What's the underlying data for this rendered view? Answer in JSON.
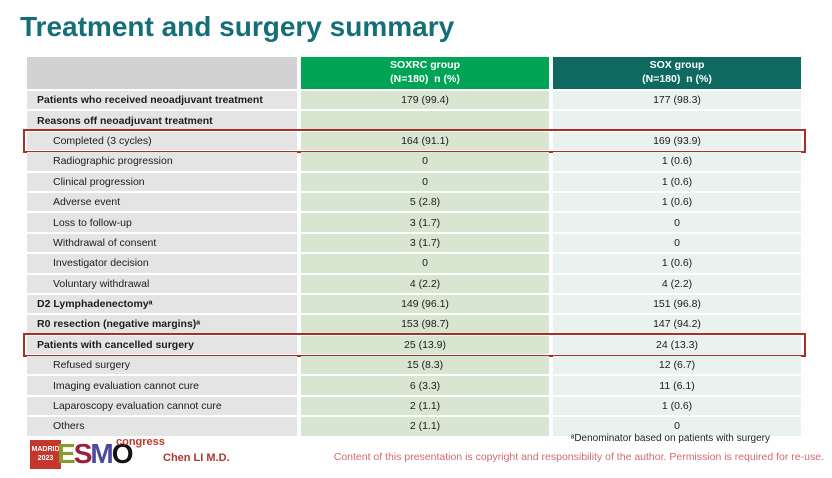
{
  "title": "Treatment and surgery summary",
  "table": {
    "col_headers": [
      {
        "line1": "SOXRC group",
        "line2": "(N=180)  n (%)"
      },
      {
        "line1": "SOX group",
        "line2": "(N=180)  n (%)"
      }
    ],
    "rows": [
      {
        "label": "Patients who received neoadjuvant treatment",
        "soxrc": "179 (99.4)",
        "sox": "177 (98.3)",
        "bold": true
      },
      {
        "label": "Reasons off neoadjuvant treatment",
        "soxrc": "",
        "sox": "",
        "bold": true
      },
      {
        "label": "Completed (3 cycles)",
        "soxrc": "164 (91.1)",
        "sox": "169 (93.9)",
        "indent": true,
        "highlight": true
      },
      {
        "label": "Radiographic progression",
        "soxrc": "0",
        "sox": "1 (0.6)",
        "indent": true
      },
      {
        "label": "Clinical progression",
        "soxrc": "0",
        "sox": "1 (0.6)",
        "indent": true
      },
      {
        "label": "Adverse event",
        "soxrc": "5 (2.8)",
        "sox": "1 (0.6)",
        "indent": true
      },
      {
        "label": "Loss to follow-up",
        "soxrc": "3 (1.7)",
        "sox": "0",
        "indent": true
      },
      {
        "label": "Withdrawal of consent",
        "soxrc": "3 (1.7)",
        "sox": "0",
        "indent": true
      },
      {
        "label": "Investigator decision",
        "soxrc": "0",
        "sox": "1 (0.6)",
        "indent": true
      },
      {
        "label": "Voluntary withdrawal",
        "soxrc": "4 (2.2)",
        "sox": "4 (2.2)",
        "indent": true
      },
      {
        "label": "D2 Lymphadenectomyᵃ",
        "soxrc": "149 (96.1)",
        "sox": "151 (96.8)",
        "bold": true
      },
      {
        "label": "R0 resection (negative margins)ᵃ",
        "soxrc": "153 (98.7)",
        "sox": "147 (94.2)",
        "bold": true
      },
      {
        "label": "Patients with cancelled surgery",
        "soxrc": "25 (13.9)",
        "sox": "24 (13.3)",
        "bold": true,
        "highlight": true
      },
      {
        "label": "Refused surgery",
        "soxrc": "15 (8.3)",
        "sox": "12 (6.7)",
        "indent": true
      },
      {
        "label": "Imaging evaluation cannot cure",
        "soxrc": "6 (3.3)",
        "sox": "11 (6.1)",
        "indent": true
      },
      {
        "label": "Laparoscopy evaluation cannot cure",
        "soxrc": "2 (1.1)",
        "sox": "1 (0.6)",
        "indent": true
      },
      {
        "label": "Others",
        "soxrc": "2 (1.1)",
        "sox": "0",
        "indent": true
      }
    ]
  },
  "footer": {
    "footnote": "ᵃDenominator based on patients with surgery",
    "copyright": "Content of this presentation is copyright and responsibility of the author. Permission is required for re-use.",
    "presenter": "Chen LI M.D.",
    "logo": {
      "city": "MADRID",
      "year": "2023",
      "letters": [
        "E",
        "S",
        "M",
        "O"
      ],
      "congress": "congress"
    }
  },
  "colors": {
    "title": "#156e78",
    "soxrc_header": "#00a455",
    "sox_header": "#0e6a60",
    "label_header": "#d2d2d2",
    "label_bg": "#e4e4e4",
    "soxrc_bg": "#d8e5d0",
    "sox_bg": "#e9f2ee",
    "highlight_border": "#a63227",
    "copyright_text": "#d06b76",
    "presenter_text": "#a8392f",
    "logo_red": "#c5362c"
  }
}
